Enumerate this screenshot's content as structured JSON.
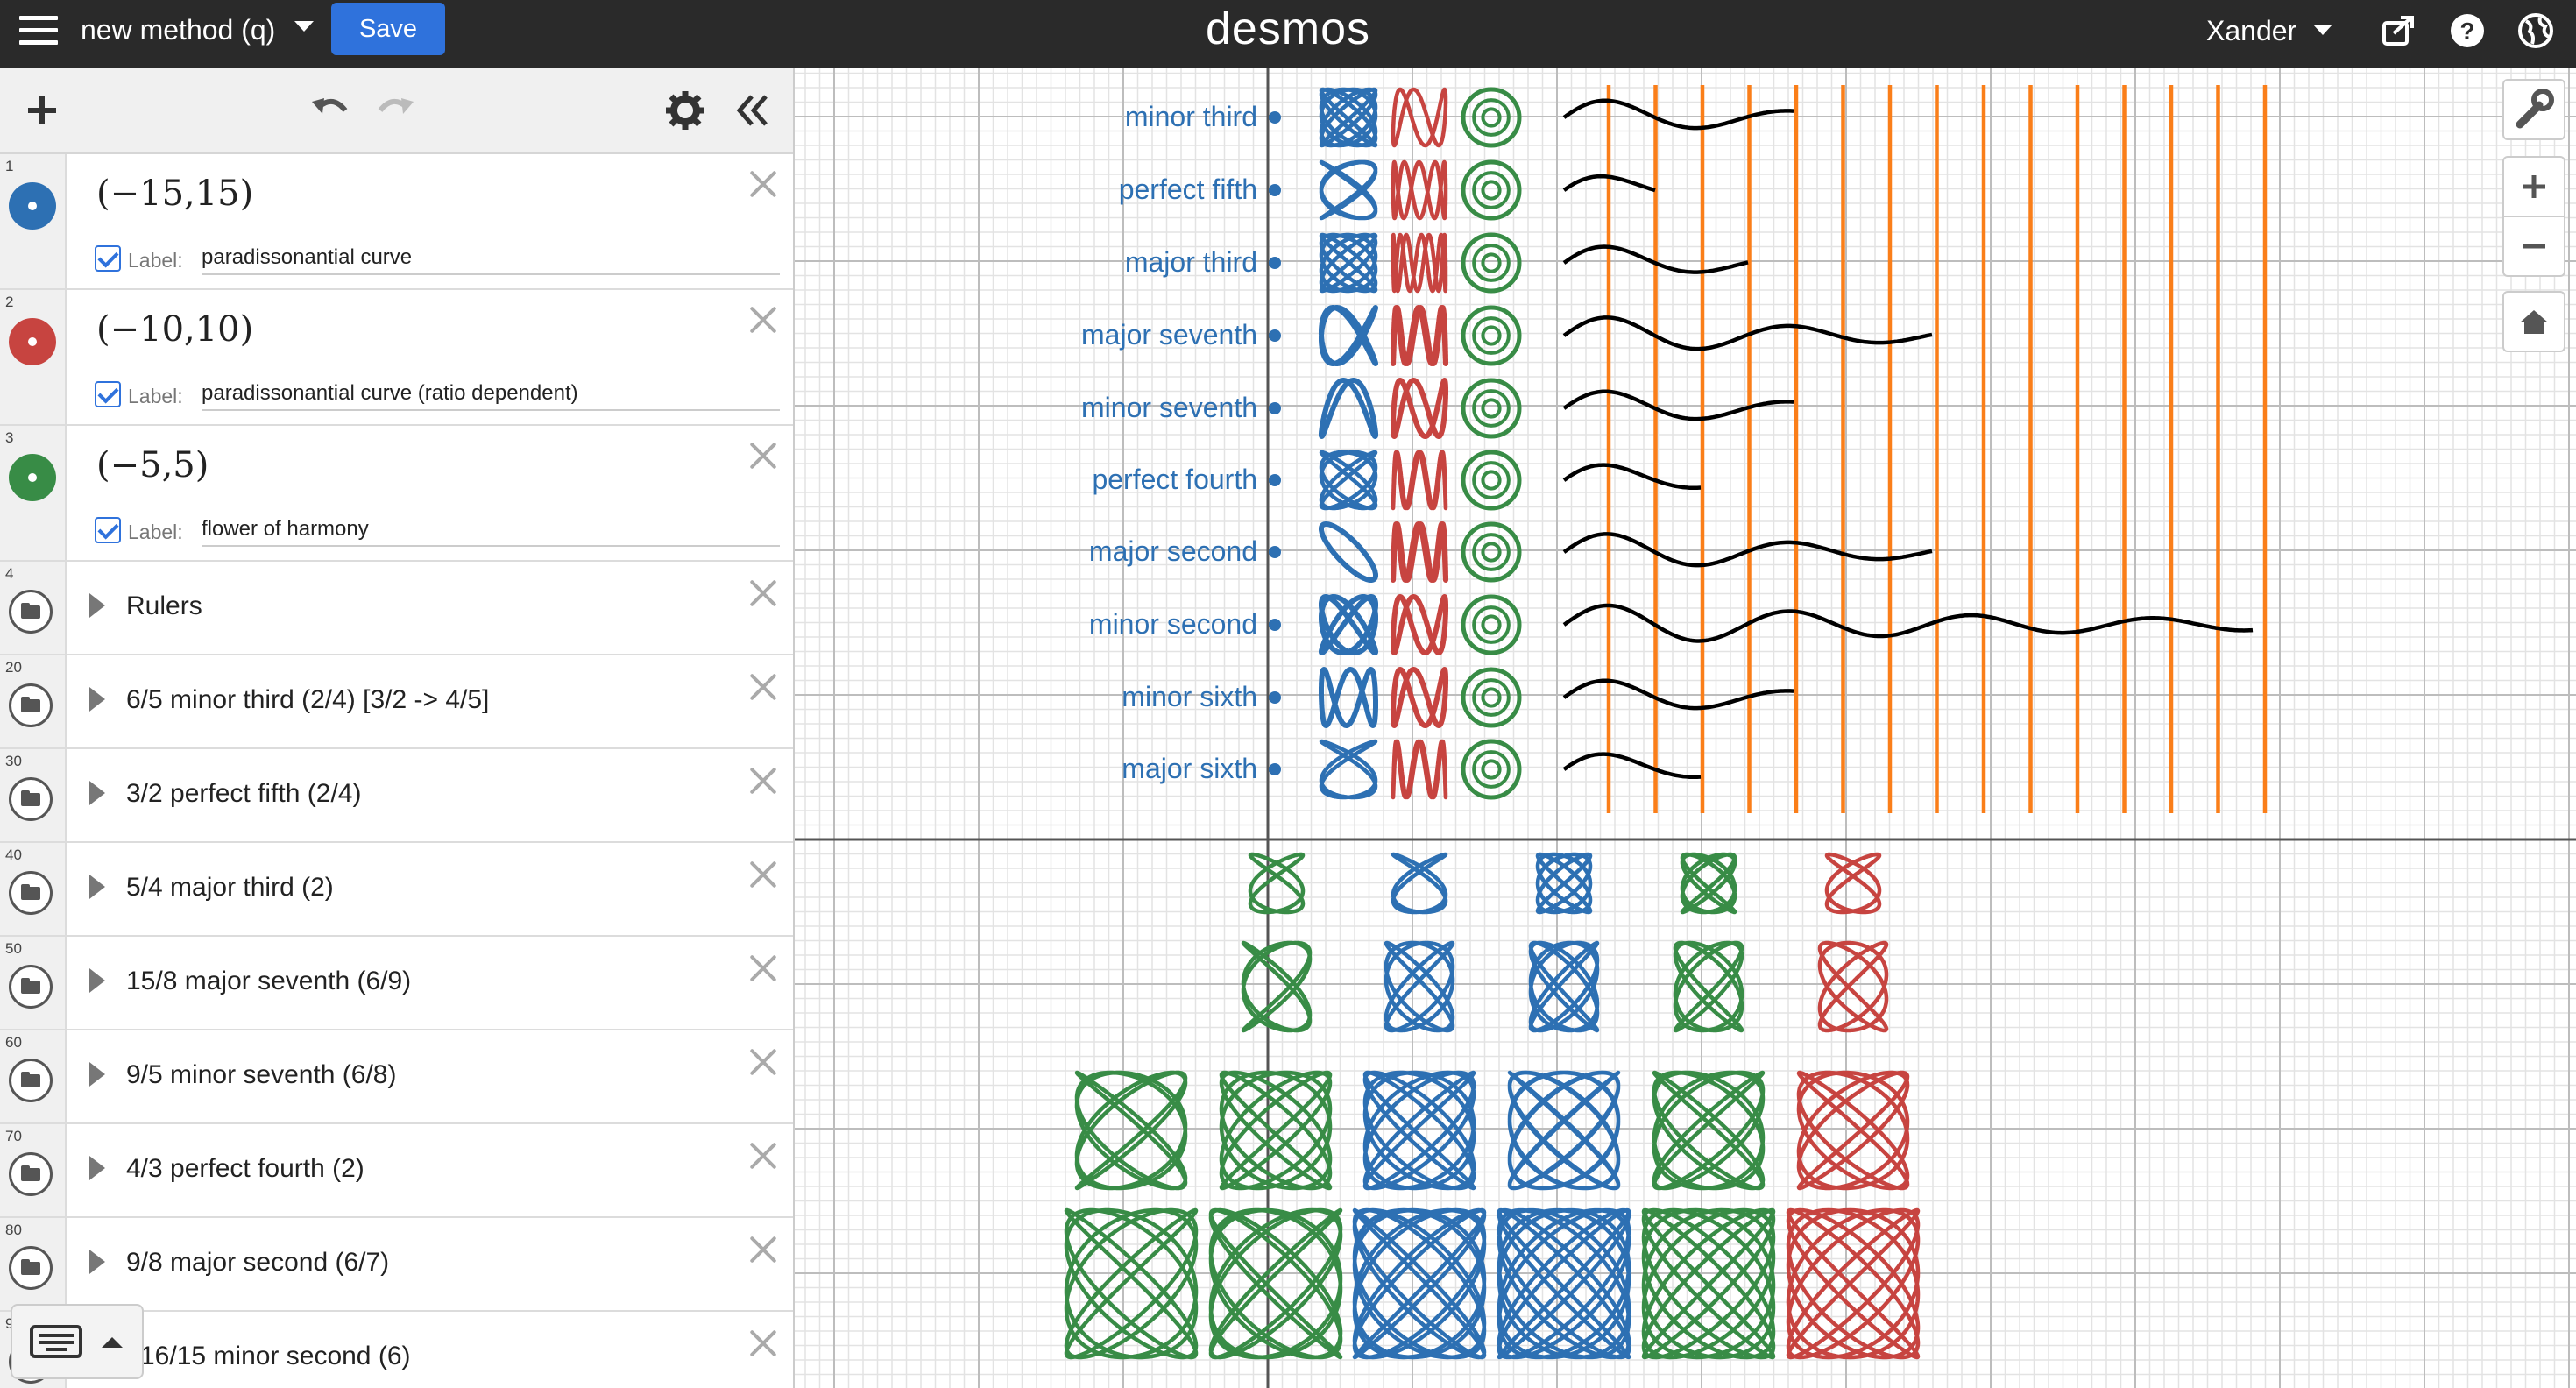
{
  "topbar": {
    "graph_title": "new method (q)",
    "save_label": "Save",
    "logo": "desmos",
    "user_name": "Xander"
  },
  "expressions": [
    {
      "num": "1",
      "latex": "(−15,15)",
      "color": "#2d70b3",
      "label_key": "Label:",
      "label": "paradissonantial curve",
      "label_checked": true
    },
    {
      "num": "2",
      "latex": "(−10,10)",
      "color": "#c74440",
      "label_key": "Label:",
      "label": "paradissonantial curve (ratio dependent)",
      "label_checked": true
    },
    {
      "num": "3",
      "latex": "(−5,5)",
      "color": "#388c46",
      "label_key": "Label:",
      "label": "flower of harmony",
      "label_checked": true
    }
  ],
  "folders": [
    {
      "num": "4",
      "title": "Rulers"
    },
    {
      "num": "20",
      "title": "6/5 minor third (2/4) [3/2 -> 4/5]"
    },
    {
      "num": "30",
      "title": "3/2 perfect fifth (2/4)"
    },
    {
      "num": "40",
      "title": "5/4 major third (2)"
    },
    {
      "num": "50",
      "title": "15/8 major seventh (6/9)"
    },
    {
      "num": "60",
      "title": "9/5 minor seventh (6/8)"
    },
    {
      "num": "70",
      "title": "4/3 perfect fourth (2)"
    },
    {
      "num": "80",
      "title": "9/8 major second (6/7)"
    },
    {
      "num": "9",
      "title": "16/15 minor second (6)"
    }
  ],
  "graph": {
    "point_labels": [
      "minor third",
      "perfect fifth",
      "major third",
      "major seventh",
      "minor seventh",
      "perfect fourth",
      "major second",
      "minor second",
      "minor sixth",
      "major sixth"
    ],
    "wave_lengths": [
      2.5,
      1,
      2,
      4,
      2.5,
      1.5,
      4,
      7.5,
      2.5,
      1.5
    ],
    "colors": {
      "blue": "#2d70b3",
      "red": "#c74440",
      "green": "#388c46",
      "orange": "#fa7e19",
      "wave": "#000000"
    },
    "lissajous_rows": [
      {
        "ratios": [
          [
            3,
            2
          ],
          [
            3,
            2
          ],
          [
            5,
            4
          ],
          [
            5,
            4
          ],
          [
            3,
            2
          ]
        ],
        "colors": [
          "green",
          "blue",
          "blue",
          "green",
          "red"
        ]
      },
      {
        "ratios": [
          [
            4,
            3
          ],
          [
            5,
            4
          ],
          [
            6,
            5
          ],
          [
            5,
            4
          ],
          [
            4,
            3
          ]
        ],
        "colors": [
          "green",
          "blue",
          "blue",
          "green",
          "red"
        ]
      },
      {
        "ratios": [
          [
            6,
            5
          ],
          [
            7,
            6
          ],
          [
            8,
            7
          ],
          [
            9,
            8
          ],
          [
            7,
            6
          ],
          [
            6,
            5
          ]
        ],
        "colors": [
          "green",
          "green",
          "blue",
          "blue",
          "green",
          "red"
        ]
      },
      {
        "ratios": [
          [
            7,
            6
          ],
          [
            8,
            7
          ],
          [
            10,
            9
          ],
          [
            11,
            10
          ],
          [
            9,
            8
          ],
          [
            8,
            7
          ]
        ],
        "colors": [
          "green",
          "green",
          "blue",
          "blue",
          "green",
          "red"
        ]
      }
    ]
  }
}
